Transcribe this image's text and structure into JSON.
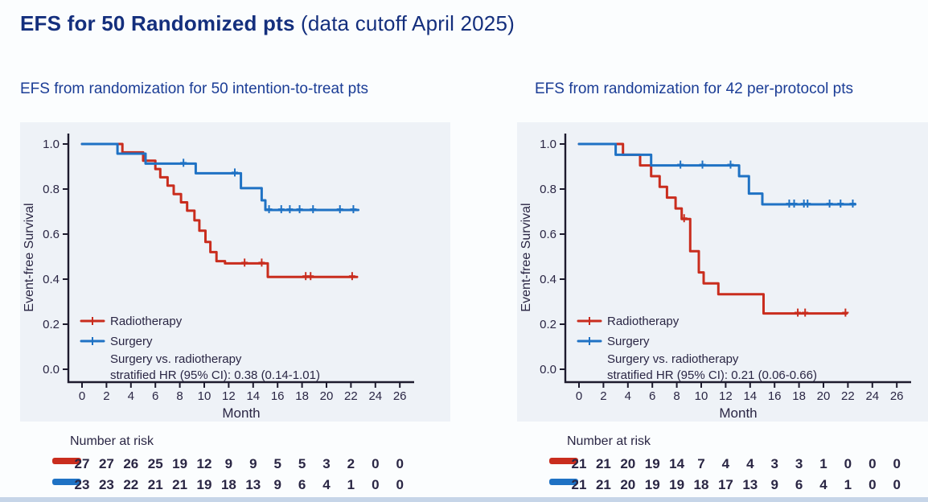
{
  "slide": {
    "title_main": "EFS for 50 Randomized pts",
    "title_suffix": " (data cutoff April 2025)"
  },
  "chart_data": [
    {
      "type": "line",
      "subtype": "kaplan-meier-step",
      "title": "EFS from randomization for 50 intention-to-treat pts",
      "xlabel": "Month",
      "ylabel": "Event-free Survival",
      "xlim": [
        0,
        26
      ],
      "ylim": [
        0.0,
        1.0
      ],
      "xticks": [
        0,
        2,
        4,
        6,
        8,
        10,
        12,
        14,
        16,
        18,
        20,
        22,
        24,
        26
      ],
      "yticks": [
        1.0,
        0.8,
        0.6,
        0.4,
        0.2,
        0.0
      ],
      "grid": "off",
      "legend_position": "lower-left",
      "legend_note_line1": "Surgery vs. radiotherapy",
      "legend_note_line2": "stratified HR (95% CI): 0.38 (0.14-1.01)",
      "series": [
        {
          "name": "Radiotherapy",
          "color": "#c92d1e",
          "steps": [
            [
              0,
              1.0
            ],
            [
              3.3,
              1.0
            ],
            [
              3.3,
              0.963
            ],
            [
              5.0,
              0.963
            ],
            [
              5.0,
              0.926
            ],
            [
              6.0,
              0.926
            ],
            [
              6.0,
              0.889
            ],
            [
              6.4,
              0.889
            ],
            [
              6.4,
              0.852
            ],
            [
              7.0,
              0.852
            ],
            [
              7.0,
              0.815
            ],
            [
              7.5,
              0.815
            ],
            [
              7.5,
              0.778
            ],
            [
              8.1,
              0.778
            ],
            [
              8.1,
              0.741
            ],
            [
              8.6,
              0.741
            ],
            [
              8.6,
              0.704
            ],
            [
              9.2,
              0.704
            ],
            [
              9.2,
              0.661
            ],
            [
              9.6,
              0.661
            ],
            [
              9.6,
              0.615
            ],
            [
              10.1,
              0.615
            ],
            [
              10.1,
              0.565
            ],
            [
              10.5,
              0.565
            ],
            [
              10.5,
              0.52
            ],
            [
              11.0,
              0.52
            ],
            [
              11.0,
              0.48
            ],
            [
              11.7,
              0.48
            ],
            [
              11.7,
              0.47
            ],
            [
              15.2,
              0.47
            ],
            [
              15.2,
              0.41
            ],
            [
              22.5,
              0.41
            ]
          ],
          "censors": [
            [
              13.3,
              0.47
            ],
            [
              14.7,
              0.47
            ],
            [
              18.3,
              0.41
            ],
            [
              18.7,
              0.41
            ],
            [
              22.1,
              0.41
            ]
          ]
        },
        {
          "name": "Surgery",
          "color": "#1f72c4",
          "steps": [
            [
              0,
              1.0
            ],
            [
              2.9,
              1.0
            ],
            [
              2.9,
              0.957
            ],
            [
              5.2,
              0.957
            ],
            [
              5.2,
              0.913
            ],
            [
              9.3,
              0.913
            ],
            [
              9.3,
              0.87
            ],
            [
              13.0,
              0.87
            ],
            [
              13.0,
              0.804
            ],
            [
              14.7,
              0.804
            ],
            [
              14.7,
              0.75
            ],
            [
              15.0,
              0.75
            ],
            [
              15.0,
              0.707
            ],
            [
              22.6,
              0.707
            ]
          ],
          "censors": [
            [
              8.3,
              0.913
            ],
            [
              12.5,
              0.87
            ],
            [
              15.3,
              0.707
            ],
            [
              16.3,
              0.707
            ],
            [
              17.0,
              0.707
            ],
            [
              17.8,
              0.707
            ],
            [
              18.9,
              0.707
            ],
            [
              21.1,
              0.707
            ],
            [
              22.2,
              0.707
            ]
          ]
        }
      ],
      "risk_table": {
        "label": "Number at risk",
        "rows": [
          {
            "name": "Radiotherapy",
            "color": "#c92d1e",
            "values": [
              27,
              27,
              26,
              25,
              19,
              12,
              9,
              9,
              5,
              5,
              3,
              2,
              0,
              0
            ]
          },
          {
            "name": "Surgery",
            "color": "#1f72c4",
            "values": [
              23,
              23,
              22,
              21,
              21,
              19,
              18,
              13,
              9,
              6,
              4,
              1,
              0,
              0
            ]
          }
        ]
      }
    },
    {
      "type": "line",
      "subtype": "kaplan-meier-step",
      "title": "EFS from randomization for 42 per-protocol pts",
      "xlabel": "Month",
      "ylabel": "Event-free Survival",
      "xlim": [
        0,
        26
      ],
      "ylim": [
        0.0,
        1.0
      ],
      "xticks": [
        0,
        2,
        4,
        6,
        8,
        10,
        12,
        14,
        16,
        18,
        20,
        22,
        24,
        26
      ],
      "yticks": [
        1.0,
        0.8,
        0.6,
        0.4,
        0.2,
        0.0
      ],
      "grid": "off",
      "legend_position": "lower-left",
      "legend_note_line1": "Surgery vs. radiotherapy",
      "legend_note_line2": "stratified HR (95% CI): 0.21 (0.06-0.66)",
      "series": [
        {
          "name": "Radiotherapy",
          "color": "#c92d1e",
          "steps": [
            [
              0,
              1.0
            ],
            [
              3.6,
              1.0
            ],
            [
              3.6,
              0.952
            ],
            [
              5.0,
              0.952
            ],
            [
              5.0,
              0.905
            ],
            [
              5.9,
              0.905
            ],
            [
              5.9,
              0.857
            ],
            [
              6.6,
              0.857
            ],
            [
              6.6,
              0.81
            ],
            [
              7.2,
              0.81
            ],
            [
              7.2,
              0.762
            ],
            [
              7.9,
              0.762
            ],
            [
              7.9,
              0.714
            ],
            [
              8.4,
              0.714
            ],
            [
              8.4,
              0.667
            ],
            [
              9.1,
              0.667
            ],
            [
              9.1,
              0.524
            ],
            [
              9.8,
              0.524
            ],
            [
              9.8,
              0.43
            ],
            [
              10.2,
              0.43
            ],
            [
              10.2,
              0.381
            ],
            [
              11.4,
              0.381
            ],
            [
              11.4,
              0.333
            ],
            [
              15.1,
              0.333
            ],
            [
              15.1,
              0.248
            ],
            [
              21.9,
              0.248
            ]
          ],
          "censors": [
            [
              8.6,
              0.667
            ],
            [
              17.9,
              0.248
            ],
            [
              18.5,
              0.248
            ],
            [
              21.8,
              0.248
            ]
          ]
        },
        {
          "name": "Surgery",
          "color": "#1f72c4",
          "steps": [
            [
              0,
              1.0
            ],
            [
              3.0,
              1.0
            ],
            [
              3.0,
              0.952
            ],
            [
              5.9,
              0.952
            ],
            [
              5.9,
              0.905
            ],
            [
              13.1,
              0.905
            ],
            [
              13.1,
              0.857
            ],
            [
              13.9,
              0.857
            ],
            [
              13.9,
              0.78
            ],
            [
              15.0,
              0.78
            ],
            [
              15.0,
              0.732
            ],
            [
              22.6,
              0.732
            ]
          ],
          "censors": [
            [
              8.3,
              0.905
            ],
            [
              10.1,
              0.905
            ],
            [
              12.4,
              0.905
            ],
            [
              17.2,
              0.732
            ],
            [
              17.6,
              0.732
            ],
            [
              18.4,
              0.732
            ],
            [
              18.7,
              0.732
            ],
            [
              20.5,
              0.732
            ],
            [
              21.4,
              0.732
            ],
            [
              22.4,
              0.732
            ]
          ]
        }
      ],
      "risk_table": {
        "label": "Number at risk",
        "rows": [
          {
            "name": "Radiotherapy",
            "color": "#c92d1e",
            "values": [
              21,
              21,
              20,
              19,
              14,
              7,
              4,
              4,
              3,
              3,
              1,
              0,
              0,
              0
            ]
          },
          {
            "name": "Surgery",
            "color": "#1f72c4",
            "values": [
              21,
              21,
              20,
              19,
              19,
              18,
              17,
              13,
              9,
              6,
              4,
              1,
              0,
              0
            ]
          }
        ]
      }
    }
  ]
}
